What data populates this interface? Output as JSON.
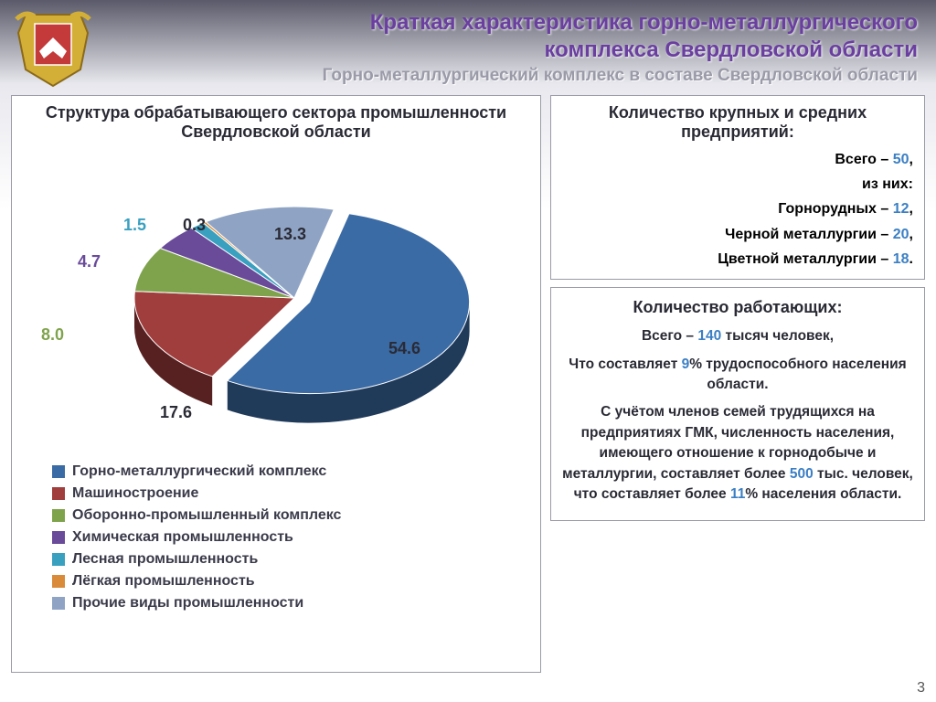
{
  "header": {
    "title_line1": "Краткая характеристика горно-металлургического",
    "title_line2": "комплекса Свердловской области",
    "subtitle": "Горно-металлургический комплекс в составе Свердловской области"
  },
  "pie_chart": {
    "type": "pie",
    "title": "Структура обрабатывающего сектора промышленности Свердловской области",
    "background_color": "#ffffff",
    "border_color": "#9a9aa8",
    "has_3d_effect": true,
    "slice_explode": [
      true,
      false,
      false,
      false,
      false,
      false,
      false
    ],
    "labels": [
      "Горно-металлургический комплекс",
      "Машиностроение",
      "Оборонно-промышленный комплекс",
      "Химическая промышленность",
      "Лесная промышленность",
      "Лёгкая промышленность",
      "Прочие виды промышленности"
    ],
    "values": [
      54.6,
      17.6,
      8.0,
      4.7,
      1.5,
      0.3,
      13.3
    ],
    "colors": [
      "#3b6ba5",
      "#a03d3d",
      "#7fa34d",
      "#6a4b9a",
      "#3aa0c0",
      "#d98b3a",
      "#8fa4c4"
    ],
    "value_label_colors": [
      "#2a2a35",
      "#2a2a35",
      "#7fa34d",
      "#6a4b9a",
      "#3aa0c0",
      "#2a2a35",
      "#2a2a35"
    ],
    "label_fontsize": 18,
    "legend_fontsize": 16,
    "legend_marker": "square",
    "legend_position": "bottom-left"
  },
  "enterprises_panel": {
    "title": "Количество крупных и средних предприятий:",
    "rows": [
      {
        "pre": "Всего – ",
        "val": "50",
        "post": ","
      },
      {
        "pre": "",
        "val": "",
        "post": "из них:"
      },
      {
        "pre": "Горнорудных – ",
        "val": "12",
        "post": ","
      },
      {
        "pre": "Черной металлургии – ",
        "val": "20",
        "post": ","
      },
      {
        "pre": "Цветной металлургии – ",
        "val": "18",
        "post": "."
      }
    ]
  },
  "workers_panel": {
    "title": "Количество работающих:",
    "p1_pre": "Всего – ",
    "p1_val": "140",
    "p1_post": " тысяч человек,",
    "p2_pre": "Что составляет ",
    "p2_val": "9",
    "p2_post": "% трудоспособного населения области.",
    "p3_pre": "С учётом членов семей трудящихся на предприятиях ГМК, численность населения, имеющего отношение к горнодобыче и металлургии, составляет более ",
    "p3_val1": "500",
    "p3_mid": " тыс. человек, что составляет более ",
    "p3_val2": "11",
    "p3_post": "% населения области."
  },
  "page_number": "3",
  "highlight_color": "#3b7fc4",
  "text_color": "#2a2a35"
}
